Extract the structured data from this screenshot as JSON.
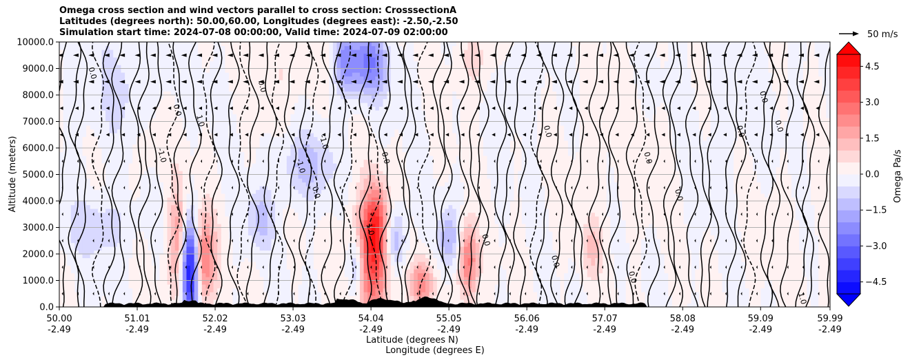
{
  "chart_data": {
    "type": "heatmap",
    "title_lines": [
      "Omega cross section and wind vectors parallel to cross section: CrosssectionA",
      "Latitudes (degrees north): 50.00,60.00, Longitudes (degrees east): -2.50,-2.50",
      "Simulation start time: 2024-07-08 00:00:00, Valid time: 2024-07-09 02:00:00"
    ],
    "ylabel": "Altitude (meters)",
    "xlabel_lines": [
      "Latitude (degrees N)",
      "Longitude (degrees E)"
    ],
    "ylim": [
      0,
      10000
    ],
    "yticks": [
      "0.0",
      "1000.0",
      "2000.0",
      "3000.0",
      "4000.0",
      "5000.0",
      "6000.0",
      "7000.0",
      "8000.0",
      "9000.0",
      "10000.0"
    ],
    "ytick_values": [
      0,
      1000,
      2000,
      3000,
      4000,
      5000,
      6000,
      7000,
      8000,
      9000,
      10000
    ],
    "xlim": [
      50.0,
      59.99
    ],
    "xtick_values": [
      50.0,
      51.01,
      52.02,
      53.03,
      54.04,
      55.05,
      56.06,
      57.07,
      58.08,
      59.09,
      59.99
    ],
    "xticks": [
      {
        "lat": "50.00",
        "lon": "-2.49"
      },
      {
        "lat": "51.01",
        "lon": "-2.49"
      },
      {
        "lat": "52.02",
        "lon": "-2.49"
      },
      {
        "lat": "53.03",
        "lon": "-2.49"
      },
      {
        "lat": "54.04",
        "lon": "-2.49"
      },
      {
        "lat": "55.05",
        "lon": "-2.49"
      },
      {
        "lat": "56.06",
        "lon": "-2.49"
      },
      {
        "lat": "57.07",
        "lon": "-2.49"
      },
      {
        "lat": "58.08",
        "lon": "-2.49"
      },
      {
        "lat": "59.09",
        "lon": "-2.49"
      },
      {
        "lat": "59.99",
        "lon": "-2.49"
      }
    ],
    "grid": true,
    "colorbar": {
      "label": "Omega Pa/s",
      "min": -5.0,
      "max": 5.0,
      "step": 0.5,
      "tick_values": [
        4.5,
        3.0,
        1.5,
        0.0,
        -1.5,
        -3.0,
        -4.5
      ],
      "tick_labels": [
        "4.5",
        "3.0",
        "1.5",
        "0.0",
        "−1.5",
        "−3.0",
        "−4.5"
      ],
      "extend": "both",
      "colormap": "bwr"
    },
    "quiver_key": {
      "label": "50 m/s",
      "value": 50
    },
    "contour_labels": [
      {
        "text": "0.0",
        "x": 51.5,
        "y": 7400
      },
      {
        "text": "1.0",
        "x": 51.8,
        "y": 7000
      },
      {
        "text": "0.0",
        "x": 52.6,
        "y": 8300
      },
      {
        "text": "-1.0",
        "x": 53.4,
        "y": 6200
      },
      {
        "text": "0.0",
        "x": 53.3,
        "y": 4300
      },
      {
        "text": "-1.0",
        "x": 53.1,
        "y": 5300
      },
      {
        "text": "0.0",
        "x": 54.2,
        "y": 5600
      },
      {
        "text": "1.0",
        "x": 54.0,
        "y": 2900
      },
      {
        "text": "0.0",
        "x": 55.5,
        "y": 2500
      },
      {
        "text": "0.0",
        "x": 57.6,
        "y": 5600
      },
      {
        "text": "0.0",
        "x": 58.8,
        "y": 6600
      },
      {
        "text": "0.0",
        "x": 59.3,
        "y": 6800
      },
      {
        "text": "0.0",
        "x": 59.1,
        "y": 7900
      },
      {
        "text": "1.0",
        "x": 59.6,
        "y": 300
      },
      {
        "text": "0.0",
        "x": 50.4,
        "y": 8800
      },
      {
        "text": "-1.0",
        "x": 51.3,
        "y": 5700
      },
      {
        "text": "0.0",
        "x": 56.4,
        "y": 1700
      },
      {
        "text": "0.0",
        "x": 57.4,
        "y": 1100
      },
      {
        "text": "0.0",
        "x": 58.0,
        "y": 4200
      },
      {
        "text": "0.0",
        "x": 56.3,
        "y": 6600
      }
    ]
  }
}
